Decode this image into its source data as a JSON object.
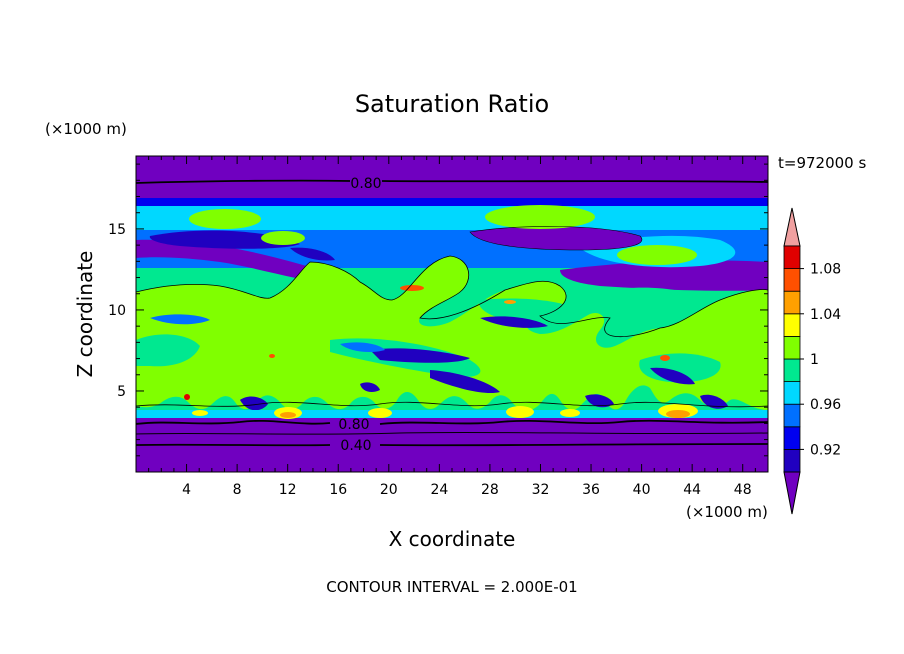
{
  "chart_data": {
    "type": "heatmap",
    "title": "Saturation Ratio",
    "xlabel": "X coordinate",
    "ylabel": "Z coordinate",
    "x_unit": "(×1000 m)",
    "y_unit": "(×1000 m)",
    "time_label": "t=972000 s",
    "footer": "CONTOUR INTERVAL = 2.000E-01",
    "xlim": [
      0,
      50
    ],
    "ylim": [
      0,
      19.5
    ],
    "x_ticks": [
      4,
      8,
      12,
      16,
      20,
      24,
      28,
      32,
      36,
      40,
      44,
      48
    ],
    "y_ticks": [
      5,
      10,
      15
    ],
    "colorbar": {
      "levels": [
        0.92,
        0.94,
        0.96,
        0.98,
        1,
        1.02,
        1.04,
        1.06,
        1.08,
        1.1
      ],
      "tick_labels": [
        "0.92",
        "0.96",
        "1",
        "1.04",
        "1.08"
      ],
      "colors": [
        "#7000c0",
        "#2000c0",
        "#0000f0",
        "#0070ff",
        "#00d8ff",
        "#00e890",
        "#80ff00",
        "#ffff00",
        "#ffa000",
        "#ff5000",
        "#e00000",
        "#f0a0a0"
      ]
    },
    "contour_labels": [
      "0.80",
      "0.80",
      "0.40"
    ]
  }
}
